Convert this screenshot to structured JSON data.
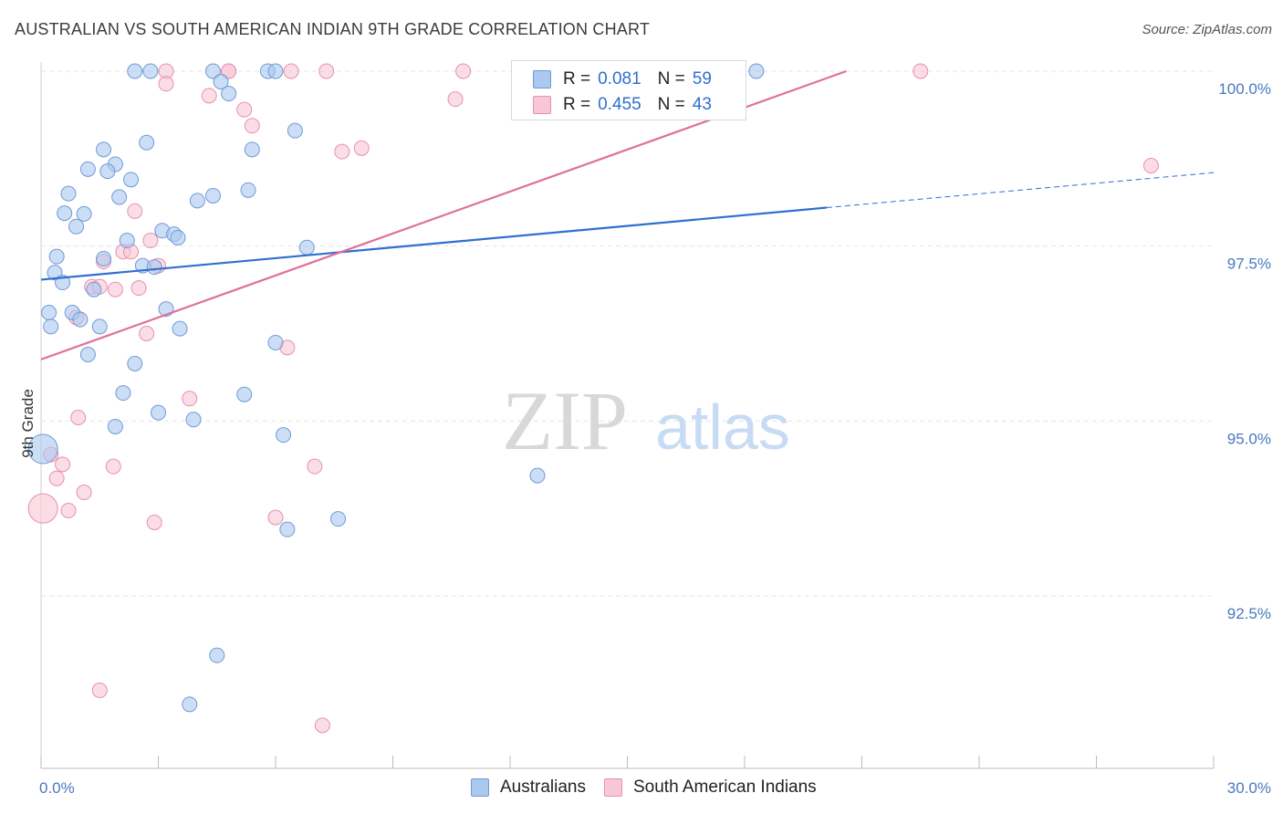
{
  "header": {
    "title": "AUSTRALIAN VS SOUTH AMERICAN INDIAN 9TH GRADE CORRELATION CHART",
    "source": "Source: ZipAtlas.com"
  },
  "legend": {
    "rows": [
      {
        "r_label": "R =",
        "r_value": "0.081",
        "n_label": "N =",
        "n_value": "59"
      },
      {
        "r_label": "R =",
        "r_value": "0.455",
        "n_label": "N =",
        "n_value": "43"
      }
    ]
  },
  "watermark": {
    "zip": "ZIP",
    "atlas": "atlas"
  },
  "colors": {
    "blue_fill": "#aac8f0",
    "blue_stroke": "#6e9ad8",
    "blue_line": "#2f6fd0",
    "pink_fill": "#f8c6d6",
    "pink_stroke": "#e890ad",
    "pink_line": "#e07098",
    "grid": "#e4e4e4",
    "tick_text": "#4a78c2"
  },
  "chart_data": {
    "type": "scatter",
    "title": "AUSTRALIAN VS SOUTH AMERICAN INDIAN 9TH GRADE CORRELATION CHART",
    "xlabel": "",
    "ylabel": "9th Grade",
    "xlim": [
      0,
      30
    ],
    "ylim": [
      90.2,
      100.25
    ],
    "x_tick_labels": [
      "0.0%",
      "30.0%"
    ],
    "y_ticks": [
      92.5,
      95.0,
      97.5,
      100.0
    ],
    "y_tick_labels": [
      "92.5%",
      "95.0%",
      "97.5%",
      "100.0%"
    ],
    "grid": "horizontal dashed",
    "legend_position": "top-center",
    "series": [
      {
        "name": "Australians",
        "color": "#aac8f0",
        "r": 0.081,
        "n": 59,
        "trend": {
          "x0": 0,
          "y0": 97.02,
          "x1": 20.1,
          "y1": 98.05,
          "dashed_to_x": 30,
          "dashed_to_y": 98.55
        },
        "points": [
          {
            "x": 2.4,
            "y": 100.0
          },
          {
            "x": 2.8,
            "y": 100.0
          },
          {
            "x": 4.4,
            "y": 100.0
          },
          {
            "x": 5.8,
            "y": 100.0
          },
          {
            "x": 6.0,
            "y": 100.0
          },
          {
            "x": 12.3,
            "y": 100.0
          },
          {
            "x": 18.3,
            "y": 100.0
          },
          {
            "x": 4.6,
            "y": 99.85
          },
          {
            "x": 4.8,
            "y": 99.68
          },
          {
            "x": 6.5,
            "y": 99.15
          },
          {
            "x": 2.7,
            "y": 98.98
          },
          {
            "x": 1.6,
            "y": 98.88
          },
          {
            "x": 5.4,
            "y": 98.88
          },
          {
            "x": 1.9,
            "y": 98.67
          },
          {
            "x": 1.2,
            "y": 98.6
          },
          {
            "x": 1.7,
            "y": 98.57
          },
          {
            "x": 2.3,
            "y": 98.45
          },
          {
            "x": 5.3,
            "y": 98.3
          },
          {
            "x": 0.7,
            "y": 98.25
          },
          {
            "x": 2.0,
            "y": 98.2
          },
          {
            "x": 4.4,
            "y": 98.22
          },
          {
            "x": 4.0,
            "y": 98.15
          },
          {
            "x": 0.6,
            "y": 97.97
          },
          {
            "x": 1.1,
            "y": 97.96
          },
          {
            "x": 0.9,
            "y": 97.78
          },
          {
            "x": 3.1,
            "y": 97.72
          },
          {
            "x": 3.4,
            "y": 97.67
          },
          {
            "x": 3.5,
            "y": 97.62
          },
          {
            "x": 2.2,
            "y": 97.58
          },
          {
            "x": 6.8,
            "y": 97.48
          },
          {
            "x": 0.4,
            "y": 97.35
          },
          {
            "x": 1.6,
            "y": 97.32
          },
          {
            "x": 2.6,
            "y": 97.22
          },
          {
            "x": 2.9,
            "y": 97.2
          },
          {
            "x": 0.35,
            "y": 97.12
          },
          {
            "x": 0.55,
            "y": 96.98
          },
          {
            "x": 1.35,
            "y": 96.88
          },
          {
            "x": 0.2,
            "y": 96.55
          },
          {
            "x": 0.8,
            "y": 96.55
          },
          {
            "x": 3.2,
            "y": 96.6
          },
          {
            "x": 1.0,
            "y": 96.45
          },
          {
            "x": 0.25,
            "y": 96.35
          },
          {
            "x": 1.5,
            "y": 96.35
          },
          {
            "x": 3.55,
            "y": 96.32
          },
          {
            "x": 6.0,
            "y": 96.12
          },
          {
            "x": 1.2,
            "y": 95.95
          },
          {
            "x": 2.4,
            "y": 95.82
          },
          {
            "x": 2.1,
            "y": 95.4
          },
          {
            "x": 5.2,
            "y": 95.38
          },
          {
            "x": 3.0,
            "y": 95.12
          },
          {
            "x": 3.9,
            "y": 95.02
          },
          {
            "x": 1.9,
            "y": 94.92
          },
          {
            "x": 6.2,
            "y": 94.8
          },
          {
            "x": 0.05,
            "y": 94.6
          },
          {
            "x": 12.7,
            "y": 94.22
          },
          {
            "x": 7.6,
            "y": 93.6
          },
          {
            "x": 6.3,
            "y": 93.45
          },
          {
            "x": 4.5,
            "y": 91.65
          },
          {
            "x": 3.8,
            "y": 90.95
          }
        ]
      },
      {
        "name": "South American Indians",
        "color": "#f8c6d6",
        "r": 0.455,
        "n": 43,
        "trend": {
          "x0": 0,
          "y0": 95.88,
          "x1": 20.6,
          "y1": 100.0
        },
        "points": [
          {
            "x": 3.2,
            "y": 100.0
          },
          {
            "x": 4.8,
            "y": 100.0
          },
          {
            "x": 4.8,
            "y": 100.0
          },
          {
            "x": 6.4,
            "y": 100.0
          },
          {
            "x": 7.3,
            "y": 100.0
          },
          {
            "x": 10.8,
            "y": 100.0
          },
          {
            "x": 13.5,
            "y": 100.0
          },
          {
            "x": 22.5,
            "y": 100.0
          },
          {
            "x": 3.2,
            "y": 99.82
          },
          {
            "x": 4.3,
            "y": 99.65
          },
          {
            "x": 10.6,
            "y": 99.6
          },
          {
            "x": 5.2,
            "y": 99.45
          },
          {
            "x": 5.4,
            "y": 99.22
          },
          {
            "x": 8.2,
            "y": 98.9
          },
          {
            "x": 7.7,
            "y": 98.85
          },
          {
            "x": 28.4,
            "y": 98.65
          },
          {
            "x": 2.4,
            "y": 98.0
          },
          {
            "x": 2.8,
            "y": 97.58
          },
          {
            "x": 2.1,
            "y": 97.42
          },
          {
            "x": 2.3,
            "y": 97.42
          },
          {
            "x": 1.6,
            "y": 97.28
          },
          {
            "x": 3.0,
            "y": 97.22
          },
          {
            "x": 1.3,
            "y": 96.92
          },
          {
            "x": 1.5,
            "y": 96.92
          },
          {
            "x": 1.9,
            "y": 96.88
          },
          {
            "x": 2.5,
            "y": 96.9
          },
          {
            "x": 0.9,
            "y": 96.48
          },
          {
            "x": 2.7,
            "y": 96.25
          },
          {
            "x": 6.3,
            "y": 96.05
          },
          {
            "x": 3.8,
            "y": 95.32
          },
          {
            "x": 0.95,
            "y": 95.05
          },
          {
            "x": 0.25,
            "y": 94.52
          },
          {
            "x": 0.55,
            "y": 94.38
          },
          {
            "x": 1.85,
            "y": 94.35
          },
          {
            "x": 7.0,
            "y": 94.35
          },
          {
            "x": 0.4,
            "y": 94.18
          },
          {
            "x": 1.1,
            "y": 93.98
          },
          {
            "x": 0.05,
            "y": 93.75
          },
          {
            "x": 0.7,
            "y": 93.72
          },
          {
            "x": 6.0,
            "y": 93.62
          },
          {
            "x": 2.9,
            "y": 93.55
          },
          {
            "x": 1.5,
            "y": 91.15
          },
          {
            "x": 7.2,
            "y": 90.65
          }
        ]
      }
    ]
  }
}
